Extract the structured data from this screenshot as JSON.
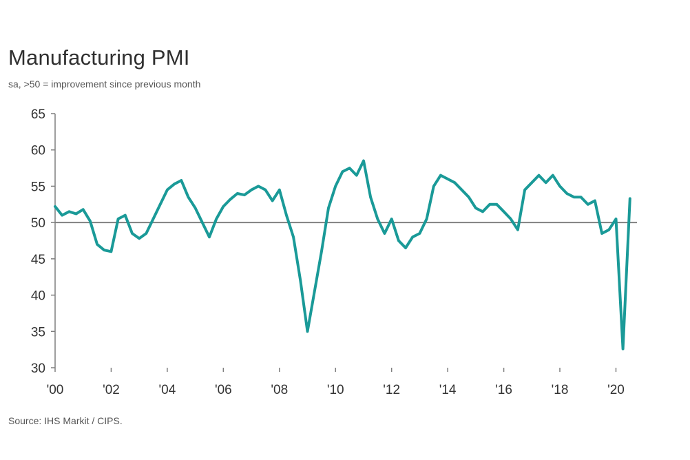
{
  "title": "Manufacturing PMI",
  "subtitle": "sa, >50 = improvement since previous month",
  "source": "Source: IHS Markit / CIPS.",
  "colors": {
    "line": "#1a9a98",
    "axis": "#7f7f7f",
    "reference": "#808080"
  },
  "chart_data": {
    "type": "line",
    "title": "Manufacturing PMI",
    "subtitle": "sa, >50 = improvement since previous month",
    "xlabel": "",
    "ylabel": "",
    "ylim": [
      30,
      65
    ],
    "xlim": [
      2000.0,
      2020.75
    ],
    "yticks": [
      30,
      35,
      40,
      45,
      50,
      55,
      60,
      65
    ],
    "xticks": [
      {
        "value": 2000,
        "label": "'00"
      },
      {
        "value": 2002,
        "label": "'02"
      },
      {
        "value": 2004,
        "label": "'04"
      },
      {
        "value": 2006,
        "label": "'06"
      },
      {
        "value": 2008,
        "label": "'08"
      },
      {
        "value": 2010,
        "label": "'10"
      },
      {
        "value": 2012,
        "label": "'12"
      },
      {
        "value": 2014,
        "label": "'14"
      },
      {
        "value": 2016,
        "label": "'16"
      },
      {
        "value": 2018,
        "label": "'18"
      },
      {
        "value": 2020,
        "label": "'20"
      }
    ],
    "reference_line": 50,
    "grid": false,
    "legend": "none",
    "series": [
      {
        "x": [
          2000.0,
          2000.25,
          2000.5,
          2000.75,
          2001.0,
          2001.25,
          2001.5,
          2001.75,
          2002.0,
          2002.25,
          2002.5,
          2002.75,
          2003.0,
          2003.25,
          2003.5,
          2003.75,
          2004.0,
          2004.25,
          2004.5,
          2004.75,
          2005.0,
          2005.25,
          2005.5,
          2005.75,
          2006.0,
          2006.25,
          2006.5,
          2006.75,
          2007.0,
          2007.25,
          2007.5,
          2007.75,
          2008.0,
          2008.25,
          2008.5,
          2008.75,
          2009.0,
          2009.25,
          2009.5,
          2009.75,
          2010.0,
          2010.25,
          2010.5,
          2010.75,
          2011.0,
          2011.25,
          2011.5,
          2011.75,
          2012.0,
          2012.25,
          2012.5,
          2012.75,
          2013.0,
          2013.25,
          2013.5,
          2013.75,
          2014.0,
          2014.25,
          2014.5,
          2014.75,
          2015.0,
          2015.25,
          2015.5,
          2015.75,
          2016.0,
          2016.25,
          2016.5,
          2016.75,
          2017.0,
          2017.25,
          2017.5,
          2017.75,
          2018.0,
          2018.25,
          2018.5,
          2018.75,
          2019.0,
          2019.25,
          2019.5,
          2019.75,
          2020.0,
          2020.25,
          2020.5
        ],
        "values": [
          52.2,
          51.0,
          51.5,
          51.2,
          51.8,
          50.2,
          47.0,
          46.2,
          46.0,
          50.5,
          51.0,
          48.5,
          47.8,
          48.5,
          50.5,
          52.5,
          54.5,
          55.3,
          55.8,
          53.5,
          52.0,
          50.0,
          48.0,
          50.5,
          52.2,
          53.2,
          54.0,
          53.8,
          54.5,
          55.0,
          54.5,
          53.0,
          54.5,
          51.0,
          48.0,
          42.0,
          35.0,
          40.5,
          46.0,
          52.0,
          55.0,
          57.0,
          57.5,
          56.5,
          58.5,
          53.5,
          50.5,
          48.5,
          50.5,
          47.5,
          46.5,
          48.0,
          48.5,
          50.5,
          55.0,
          56.5,
          56.0,
          55.5,
          54.5,
          53.5,
          52.0,
          51.5,
          52.5,
          52.5,
          51.5,
          50.5,
          49.0,
          54.5,
          55.5,
          56.5,
          55.5,
          56.5,
          55.0,
          54.0,
          53.5,
          53.5,
          52.5,
          53.0,
          48.5,
          49.0,
          50.5,
          32.6,
          53.3
        ]
      }
    ]
  }
}
